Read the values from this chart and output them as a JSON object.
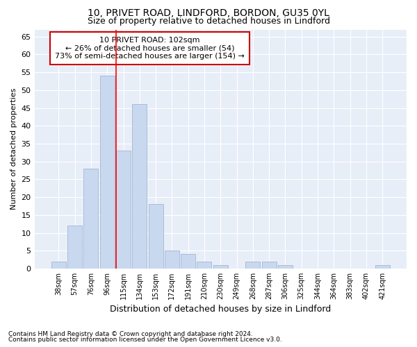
{
  "title1": "10, PRIVET ROAD, LINDFORD, BORDON, GU35 0YL",
  "title2": "Size of property relative to detached houses in Lindford",
  "xlabel": "Distribution of detached houses by size in Lindford",
  "ylabel": "Number of detached properties",
  "categories": [
    "38sqm",
    "57sqm",
    "76sqm",
    "96sqm",
    "115sqm",
    "134sqm",
    "153sqm",
    "172sqm",
    "191sqm",
    "210sqm",
    "230sqm",
    "249sqm",
    "268sqm",
    "287sqm",
    "306sqm",
    "325sqm",
    "344sqm",
    "364sqm",
    "383sqm",
    "402sqm",
    "421sqm"
  ],
  "values": [
    2,
    12,
    28,
    54,
    33,
    46,
    18,
    5,
    4,
    2,
    1,
    0,
    2,
    2,
    1,
    0,
    0,
    0,
    0,
    0,
    1
  ],
  "bar_color": "#c8d8ee",
  "bar_edge_color": "#aabcd8",
  "red_line_index": 4,
  "ylim": [
    0,
    67
  ],
  "yticks": [
    0,
    5,
    10,
    15,
    20,
    25,
    30,
    35,
    40,
    45,
    50,
    55,
    60,
    65
  ],
  "annotation_text_line1": "10 PRIVET ROAD: 102sqm",
  "annotation_text_line2": "← 26% of detached houses are smaller (54)",
  "annotation_text_line3": "73% of semi-detached houses are larger (154) →",
  "footnote1": "Contains HM Land Registry data © Crown copyright and database right 2024.",
  "footnote2": "Contains public sector information licensed under the Open Government Licence v3.0.",
  "fig_bg_color": "#ffffff",
  "plot_bg_color": "#e8eef8",
  "grid_color": "#ffffff",
  "annotation_box_bg": "#ffffff",
  "annotation_box_edge": "#cc0000"
}
